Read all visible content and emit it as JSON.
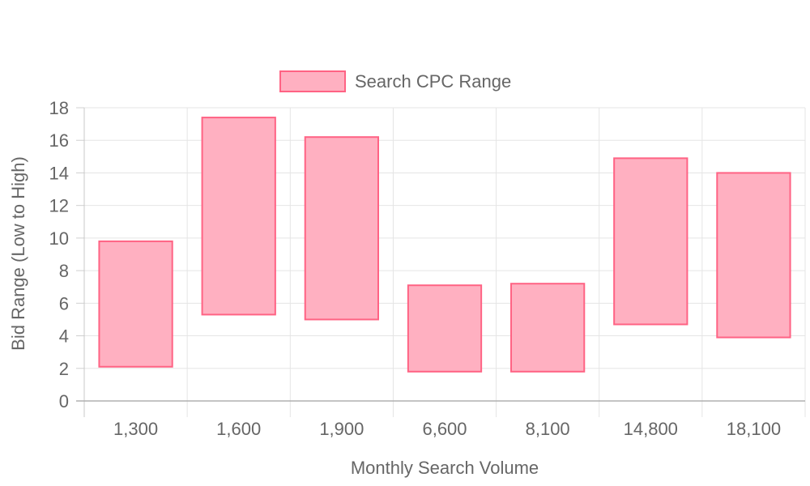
{
  "chart_data": {
    "type": "bar",
    "subtype": "floating-range",
    "categories": [
      "1,300",
      "1,600",
      "1,900",
      "6,600",
      "8,100",
      "14,800",
      "18,100"
    ],
    "series": [
      {
        "name": "Search CPC Range",
        "ranges": [
          [
            2.1,
            9.8
          ],
          [
            5.3,
            17.4
          ],
          [
            5.0,
            16.2
          ],
          [
            1.8,
            7.1
          ],
          [
            1.8,
            7.2
          ],
          [
            4.7,
            14.9
          ],
          [
            3.9,
            14.0
          ]
        ],
        "fill_color": "#ffb0c1",
        "border_color": "#ff6384"
      }
    ],
    "xlabel": "Monthly Search Volume",
    "ylabel": "Bid Range (Low to High)",
    "ylim": [
      0,
      18
    ],
    "y_ticks": [
      "0",
      "2",
      "4",
      "6",
      "8",
      "10",
      "12",
      "14",
      "16",
      "18"
    ],
    "grid": true,
    "legend_position": "top"
  }
}
